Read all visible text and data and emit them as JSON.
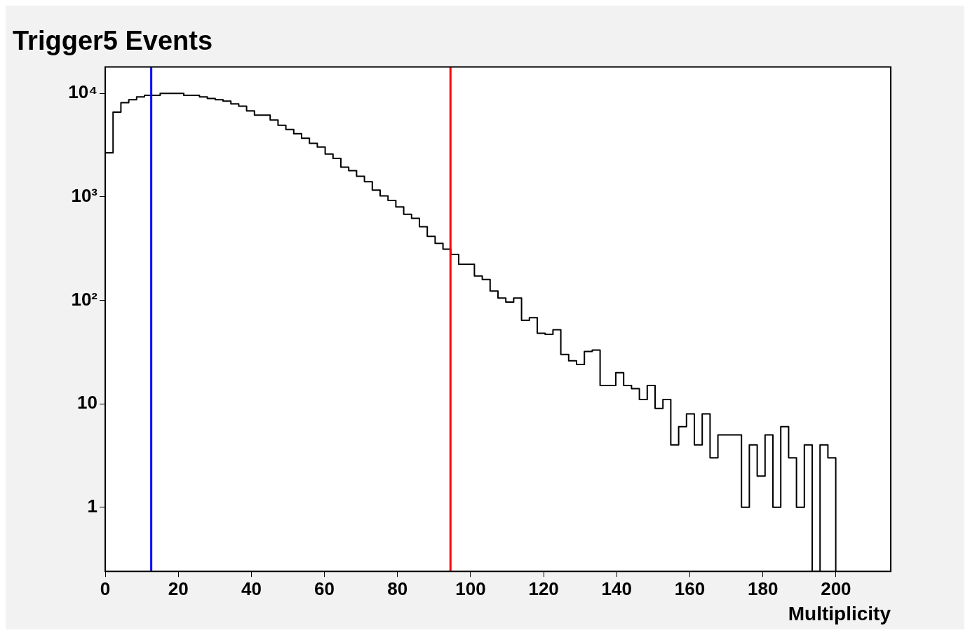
{
  "chart_data": {
    "type": "histogram",
    "title": "Trigger5 Events",
    "xlabel": "Multiplicity",
    "bins": [
      0,
      2.15,
      4.3,
      6.45,
      8.6,
      10.75,
      12.9,
      15.05,
      17.2,
      19.35,
      21.5,
      23.65,
      25.8,
      27.95,
      30.1,
      32.25,
      34.4,
      36.55,
      38.7,
      40.85,
      43,
      45.15,
      47.3,
      49.45,
      51.6,
      53.75,
      55.9,
      58.05,
      60.2,
      62.35,
      64.5,
      66.65,
      68.8,
      70.95,
      73.1,
      75.25,
      77.4,
      79.55,
      81.7,
      83.85,
      86,
      88.15,
      90.3,
      92.45,
      94.6,
      96.75,
      98.9,
      101.05,
      103.2,
      105.35,
      107.5,
      109.65,
      111.8,
      113.95,
      116.1,
      118.25,
      120.4,
      122.55,
      124.7,
      126.85,
      129,
      131.15,
      133.3,
      135.45,
      137.6,
      139.75,
      141.9,
      144.05,
      146.2,
      148.35,
      150.5,
      152.65,
      154.8,
      156.95,
      159.1,
      161.25,
      163.4,
      165.55,
      167.7,
      169.85,
      172,
      174.15,
      176.3,
      178.45,
      180.6,
      182.75,
      184.9,
      187.05,
      189.2,
      191.35,
      193.5,
      195.65,
      197.8,
      199.95
    ],
    "values": [
      2670,
      6600,
      8150,
      8700,
      9250,
      9600,
      9600,
      10000,
      10000,
      10000,
      9600,
      9600,
      9250,
      8930,
      8700,
      8430,
      7920,
      7530,
      6780,
      6180,
      6180,
      5520,
      4920,
      4480,
      4080,
      3680,
      3290,
      3030,
      2600,
      2350,
      1940,
      1790,
      1580,
      1400,
      1160,
      1020,
      925,
      800,
      678,
      621,
      515,
      415,
      355,
      312,
      278,
      223,
      223,
      172,
      159,
      123,
      105,
      96,
      105,
      64,
      68,
      48,
      47,
      52,
      30,
      26,
      24,
      32,
      33,
      15,
      15,
      20,
      15,
      14,
      11,
      15,
      9,
      11,
      4,
      6,
      8,
      4,
      8,
      3,
      5,
      5,
      5,
      1,
      4,
      2,
      5,
      1,
      6,
      3,
      1,
      4,
      null,
      4,
      3
    ],
    "color": "#000000",
    "log": "y",
    "xlim": [
      0,
      215
    ],
    "xticks": [
      0,
      20,
      40,
      60,
      80,
      100,
      120,
      140,
      160,
      180,
      200
    ],
    "ylim": [
      0.24,
      18000
    ],
    "yticks": [
      {
        "value": 1,
        "label": "1"
      },
      {
        "value": 10,
        "label": "10"
      },
      {
        "value": 100,
        "label": "10²"
      },
      {
        "value": 1000,
        "label": "10³"
      },
      {
        "value": 10000,
        "label": "10⁴"
      }
    ],
    "ref_lines": [
      {
        "axis": "x",
        "value": 12.6,
        "color": "#0000ff"
      },
      {
        "axis": "x",
        "value": 94.5,
        "color": "#ff0000"
      }
    ],
    "legend": false,
    "grid": false
  }
}
